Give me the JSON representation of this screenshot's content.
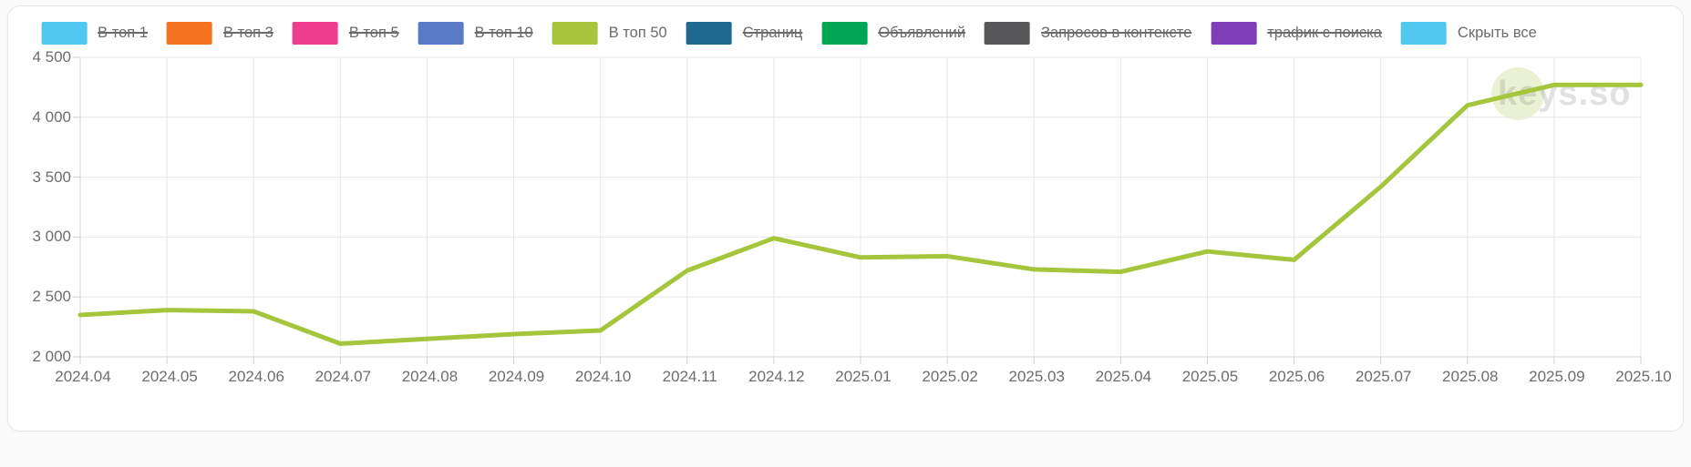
{
  "legend": {
    "items": [
      {
        "label": "В топ 1",
        "color": "#4fc7ee",
        "disabled": true
      },
      {
        "label": "В топ 3",
        "color": "#f47320",
        "disabled": true
      },
      {
        "label": "В топ 5",
        "color": "#ee3d8e",
        "disabled": true
      },
      {
        "label": "В топ 10",
        "color": "#5a7ac5",
        "disabled": true
      },
      {
        "label": "В топ 50",
        "color": "#a4c53c",
        "disabled": false
      },
      {
        "label": "Страниц",
        "color": "#1f688e",
        "disabled": true
      },
      {
        "label": "Объявлений",
        "color": "#00a651",
        "disabled": true
      },
      {
        "label": "Запросов в контексте",
        "color": "#58585a",
        "disabled": true
      },
      {
        "label": "трафик с поиска",
        "color": "#7e3eb5",
        "disabled": true
      },
      {
        "label": "Скрыть все",
        "color": "#4fc7ee",
        "disabled": false
      }
    ]
  },
  "watermark": {
    "text": "keys.so"
  },
  "chart_data": {
    "type": "line",
    "x": [
      "2024.04",
      "2024.05",
      "2024.06",
      "2024.07",
      "2024.08",
      "2024.09",
      "2024.10",
      "2024.11",
      "2024.12",
      "2025.01",
      "2025.02",
      "2025.03",
      "2025.04",
      "2025.05",
      "2025.06",
      "2025.07",
      "2025.08",
      "2025.09",
      "2025.10"
    ],
    "series": [
      {
        "name": "В топ 50",
        "color": "#a4c53c",
        "values": [
          2350,
          2390,
          2380,
          2110,
          2150,
          2190,
          2220,
          2720,
          2990,
          2830,
          2840,
          2730,
          2710,
          2880,
          2810,
          3420,
          4100,
          4270,
          4270
        ]
      }
    ],
    "ylim": [
      2000,
      4500
    ],
    "yticks": [
      {
        "value": 4500,
        "label": "4 500"
      },
      {
        "value": 4000,
        "label": "4 000"
      },
      {
        "value": 3500,
        "label": "3 500"
      },
      {
        "value": 3000,
        "label": "3 000"
      },
      {
        "value": 2500,
        "label": "2 500"
      },
      {
        "value": 2000,
        "label": "2 000"
      }
    ],
    "grid": true,
    "legend_position": "top",
    "colors": {
      "gridline": "#e7e7e7",
      "axis": "#d6d6d6",
      "tick": "#cfcfcf",
      "tick_text": "#6e6e6e"
    }
  }
}
